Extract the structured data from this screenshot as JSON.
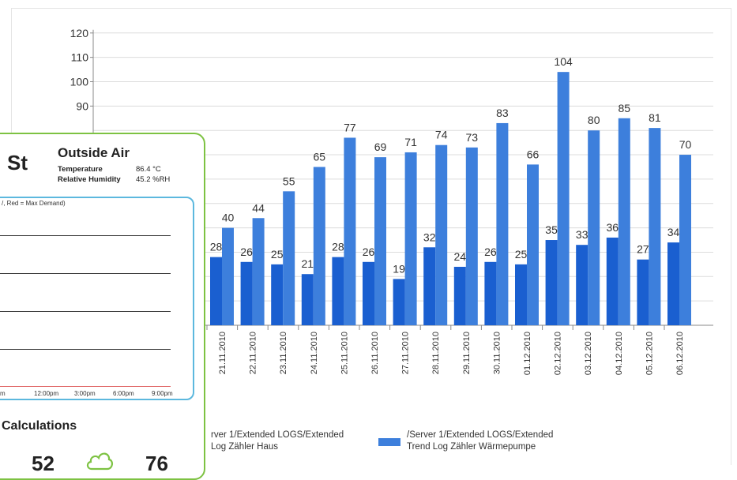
{
  "chart_data": {
    "type": "bar",
    "categories": [
      "21.11.2010",
      "22.11.2010",
      "23.11.2010",
      "24.11.2010",
      "25.11.2010",
      "26.11.2010",
      "27.11.2010",
      "28.11.2010",
      "29.11.2010",
      "30.11.2010",
      "01.12.2010",
      "02.12.2010",
      "03.12.2010",
      "04.12.2010",
      "05.12.2010",
      "06.12.2010"
    ],
    "series": [
      {
        "name": "/Server 1/Extended LOGS/Extended Trend Log Zähler Haus",
        "values": [
          28,
          26,
          25,
          21,
          28,
          26,
          19,
          32,
          24,
          26,
          25,
          35,
          33,
          36,
          27,
          34
        ],
        "labels": [
          "28",
          "26",
          "25",
          "21",
          "28",
          "26",
          "19",
          "32",
          "24",
          "26",
          "25",
          "35",
          "33",
          "36",
          "27",
          "34"
        ]
      },
      {
        "name": "/Server 1/Extended LOGS/Extended Trend Log Zähler Wärmepumpe",
        "values": [
          40,
          44,
          55,
          65,
          77,
          69,
          71,
          74,
          73,
          83,
          66,
          104,
          80,
          85,
          81,
          70
        ],
        "labels": [
          "40",
          "44",
          "55",
          "65",
          "77",
          "69",
          "71",
          "74",
          "73",
          "83",
          "66",
          "104",
          "80",
          "85",
          "81",
          "70"
        ]
      }
    ],
    "yticks": [
      "120",
      "110",
      "100",
      "90"
    ],
    "ylim": [
      0,
      120
    ],
    "grid": true,
    "legend": "bottom"
  },
  "legend": {
    "series1_line1": "rver 1/Extended LOGS/Extended",
    "series1_line2": "Log Zähler Haus",
    "series2_line1": "/Server 1/Extended LOGS/Extended",
    "series2_line2": "Trend Log Zähler Wärmepumpe"
  },
  "colors": {
    "series1": "#1a5fd0",
    "series2": "#3d7fdc",
    "card_border": "#7dc242",
    "inner_border": "#5cb8de"
  },
  "overlay": {
    "title_partial": "St",
    "outside_air_title": "Outside Air",
    "temperature_label": "Temperature",
    "temperature_value": "86.4 °C",
    "humidity_label": "Relative Humidity",
    "humidity_value": "45.2 %RH",
    "inner_chart_legend": "/, Red = Max Demand)",
    "time_ticks": [
      "m",
      "12:00pm",
      "3:00pm",
      "6:00pm",
      "9:00pm"
    ],
    "calculations_title": "Calculations",
    "value_left": "52",
    "value_right": "76",
    "cloud_icon": "cloud-icon"
  }
}
